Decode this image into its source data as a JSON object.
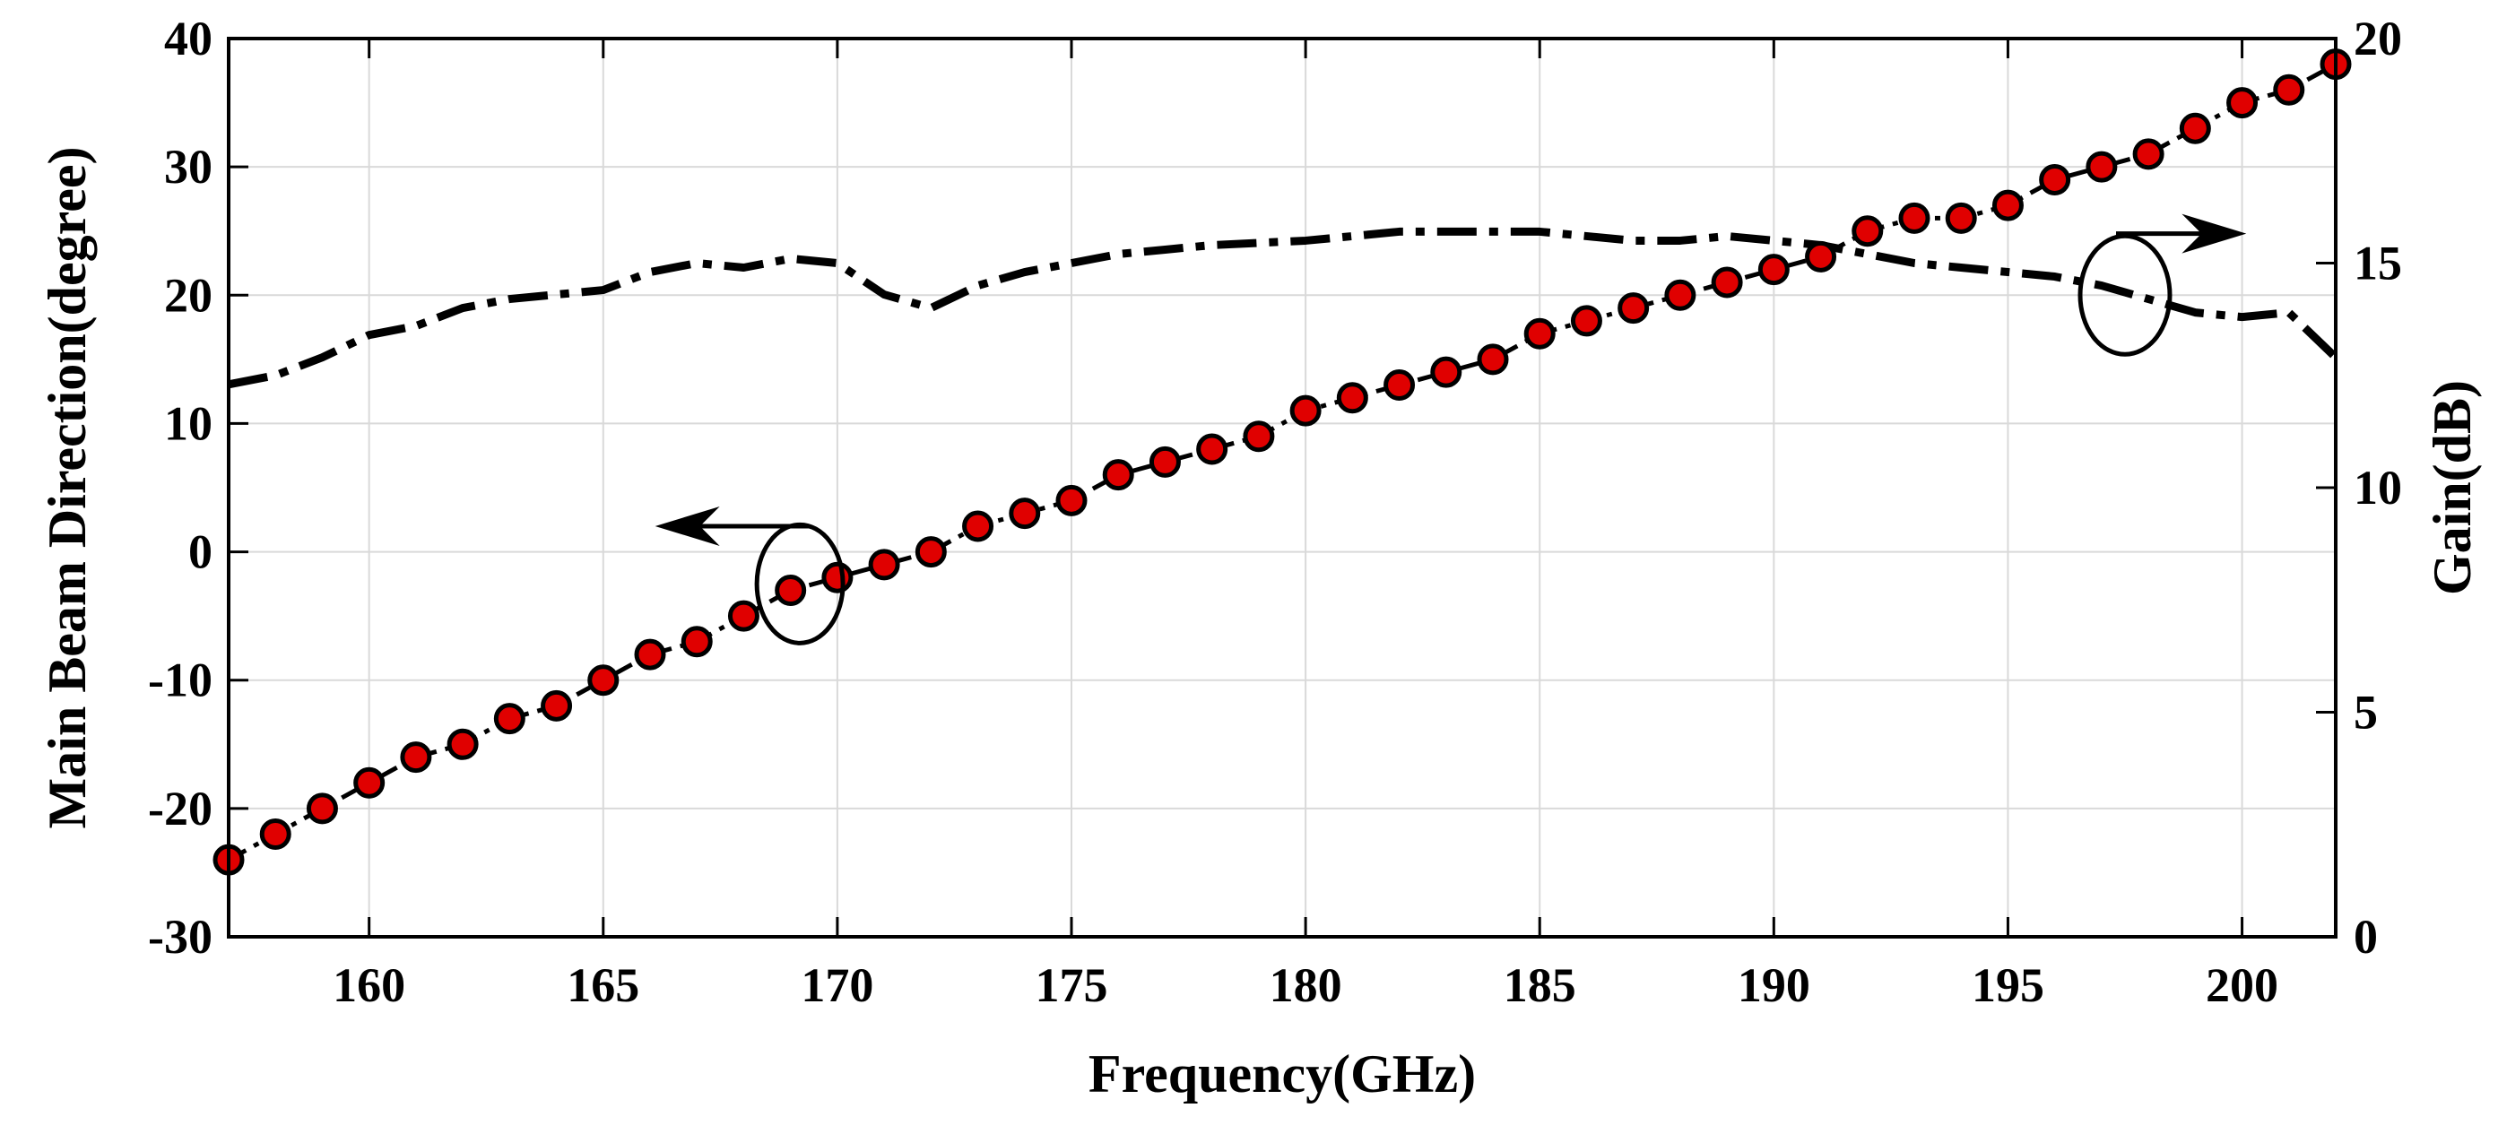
{
  "chart_data": {
    "type": "line",
    "title": "",
    "xlabel": "Frequency(GHz)",
    "ylabel": "Main Beam Direction(degree)",
    "y2label": "Gain(dB)",
    "xlim": [
      157,
      202
    ],
    "ylim": [
      -30,
      40
    ],
    "y2lim": [
      0,
      20
    ],
    "xticks": [
      160,
      165,
      170,
      175,
      180,
      185,
      190,
      195,
      200
    ],
    "yticks": [
      -30,
      -20,
      -10,
      0,
      10,
      20,
      30,
      40
    ],
    "y2ticks": [
      0,
      5,
      10,
      15,
      20
    ],
    "grid": true,
    "series": [
      {
        "name": "Main Beam Direction",
        "axis": "left",
        "style": "dash-dot with red circle markers",
        "color": "#000000",
        "marker_color": "#e00000",
        "x": [
          157,
          158,
          159,
          160,
          161,
          162,
          163,
          164,
          165,
          166,
          167,
          168,
          169,
          170,
          171,
          172,
          173,
          174,
          175,
          176,
          177,
          178,
          179,
          180,
          181,
          182,
          183,
          184,
          185,
          186,
          187,
          188,
          189,
          190,
          191,
          192,
          193,
          194,
          195,
          196,
          197,
          198,
          199,
          200,
          201,
          202
        ],
        "values": [
          -24,
          -22,
          -20,
          -18,
          -16,
          -15,
          -13,
          -12,
          -10,
          -8,
          -7,
          -5,
          -3,
          -2,
          -1,
          0,
          2,
          3,
          4,
          6,
          7,
          8,
          9,
          11,
          12,
          13,
          14,
          15,
          17,
          18,
          19,
          20,
          21,
          22,
          23,
          25,
          26,
          26,
          27,
          29,
          30,
          31,
          33,
          35,
          36,
          38
        ]
      },
      {
        "name": "Gain",
        "axis": "right",
        "style": "thick dash-dot",
        "color": "#000000",
        "x": [
          157,
          158,
          159,
          160,
          161,
          162,
          163,
          164,
          165,
          166,
          167,
          168,
          169,
          170,
          171,
          172,
          173,
          174,
          175,
          176,
          177,
          178,
          179,
          180,
          181,
          182,
          183,
          184,
          185,
          186,
          187,
          188,
          189,
          190,
          191,
          192,
          193,
          194,
          195,
          196,
          197,
          198,
          199,
          200,
          201,
          202
        ],
        "values": [
          12.3,
          12.5,
          12.9,
          13.4,
          13.6,
          14.0,
          14.2,
          14.3,
          14.4,
          14.8,
          15.0,
          14.9,
          15.1,
          15.0,
          14.3,
          14.0,
          14.5,
          14.8,
          15.0,
          15.2,
          15.3,
          15.4,
          15.45,
          15.5,
          15.6,
          15.7,
          15.7,
          15.7,
          15.7,
          15.6,
          15.5,
          15.5,
          15.6,
          15.5,
          15.4,
          15.2,
          15.0,
          14.9,
          14.8,
          14.7,
          14.5,
          14.2,
          13.9,
          13.8,
          13.9,
          12.9
        ]
      }
    ],
    "annotations": [
      {
        "type": "ellipse-arrow",
        "series": "Main Beam Direction",
        "points_to": "left axis",
        "at": [
          169,
          2
        ]
      },
      {
        "type": "ellipse-arrow",
        "series": "Gain",
        "points_to": "right axis",
        "at": [
          197.5,
          19
        ]
      }
    ]
  }
}
